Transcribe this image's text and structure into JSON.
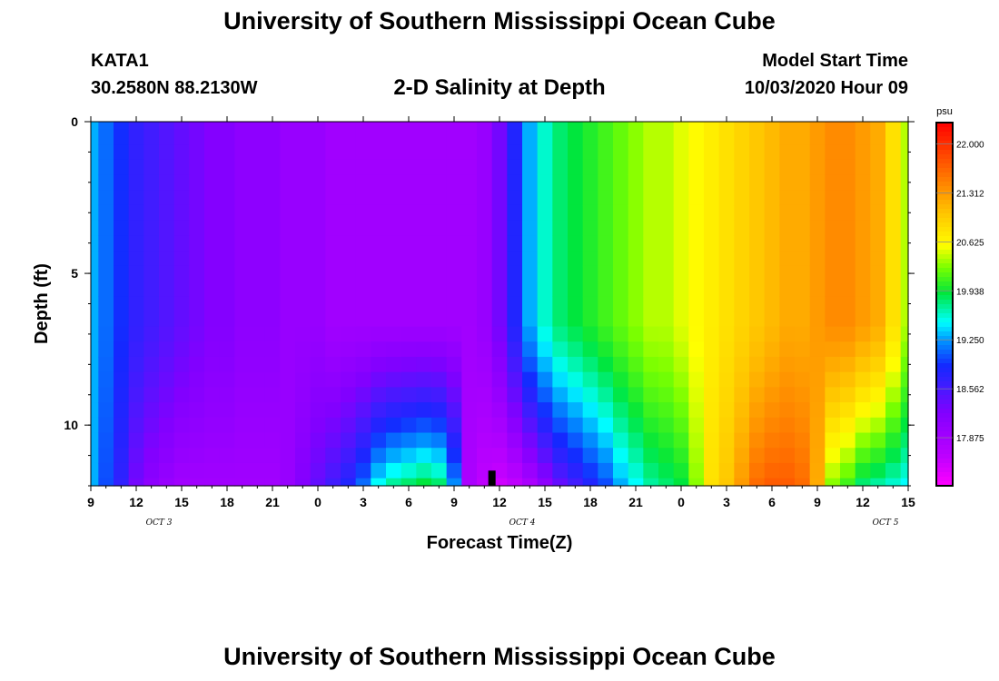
{
  "header": {
    "title": "University of Southern Mississippi Ocean Cube",
    "station": "KATA1",
    "coords": "30.2580N 88.2130W",
    "subtitle": "2-D Salinity at Depth",
    "model_start_label": "Model Start Time",
    "model_start_value": "10/03/2020 Hour 09"
  },
  "footer": {
    "title": "University of Southern Mississippi Ocean Cube"
  },
  "chart_data": {
    "type": "heatmap",
    "xlabel": "Forecast Time(Z)",
    "ylabel": "Depth (ft)",
    "x_hours": [
      9,
      10,
      11,
      12,
      13,
      14,
      15,
      16,
      17,
      18,
      19,
      20,
      21,
      22,
      23,
      0,
      1,
      2,
      3,
      4,
      5,
      6,
      7,
      8,
      9,
      10,
      11,
      12,
      13,
      14,
      15,
      16,
      17,
      18,
      19,
      20,
      21,
      22,
      23,
      0,
      1,
      2,
      3,
      4,
      5,
      6,
      7,
      8,
      9,
      10,
      11,
      12,
      13,
      14,
      15
    ],
    "x_tick_labels": [
      "9",
      "12",
      "15",
      "18",
      "21",
      "0",
      "3",
      "6",
      "9",
      "12",
      "15",
      "18",
      "21",
      "0",
      "3",
      "6",
      "9",
      "12",
      "15"
    ],
    "date_labels": [
      "OCT 3",
      "OCT 4",
      "OCT 5"
    ],
    "y_depth_ft": [
      0,
      0.5,
      1,
      1.5,
      2,
      2.5,
      3,
      3.5,
      4,
      4.5,
      5,
      5.5,
      6,
      6.5,
      7,
      7.5,
      8,
      8.5,
      9,
      9.5,
      10,
      10.5,
      11,
      11.5,
      12
    ],
    "y_tick_labels": [
      "0",
      "5",
      "10"
    ],
    "ylim": [
      0,
      12
    ],
    "time_marker_hour_index": 26.5,
    "colorbar": {
      "label": "psu",
      "min": 17.2,
      "max": 22.3,
      "tick_labels": [
        "22.000",
        "21.312",
        "20.625",
        "19.938",
        "19.250",
        "18.562",
        "17.875"
      ],
      "tick_values": [
        22.0,
        21.312,
        20.625,
        19.938,
        19.25,
        18.562,
        17.875
      ]
    },
    "surface_salinity_psu": [
      19.3,
      19.1,
      18.9,
      18.7,
      18.6,
      18.5,
      18.4,
      18.3,
      18.2,
      18.2,
      18.1,
      18.1,
      18.1,
      18.0,
      18.0,
      18.0,
      17.9,
      17.9,
      17.9,
      17.9,
      17.9,
      17.9,
      17.9,
      17.9,
      17.9,
      17.9,
      18.0,
      18.3,
      18.8,
      19.3,
      19.6,
      19.8,
      19.9,
      20.0,
      20.1,
      20.2,
      20.3,
      20.4,
      20.4,
      20.5,
      20.6,
      20.7,
      20.8,
      20.9,
      21.0,
      21.1,
      21.2,
      21.2,
      21.3,
      21.4,
      21.4,
      21.3,
      21.2,
      20.8,
      20.4
    ],
    "bottom_salinity_psu": [
      19.3,
      19.0,
      18.7,
      18.3,
      18.1,
      18.0,
      17.9,
      17.9,
      17.9,
      17.9,
      17.9,
      17.9,
      17.9,
      18.0,
      18.2,
      18.4,
      18.6,
      18.8,
      19.1,
      19.5,
      19.7,
      19.8,
      19.9,
      19.8,
      19.2,
      17.8,
      17.6,
      17.5,
      17.6,
      17.8,
      18.1,
      18.4,
      18.6,
      18.8,
      19.0,
      19.3,
      19.5,
      19.7,
      19.8,
      19.9,
      20.3,
      20.8,
      21.0,
      21.3,
      21.6,
      21.7,
      21.7,
      21.6,
      21.2,
      20.3,
      20.1,
      19.8,
      19.7,
      19.6,
      19.5
    ]
  }
}
